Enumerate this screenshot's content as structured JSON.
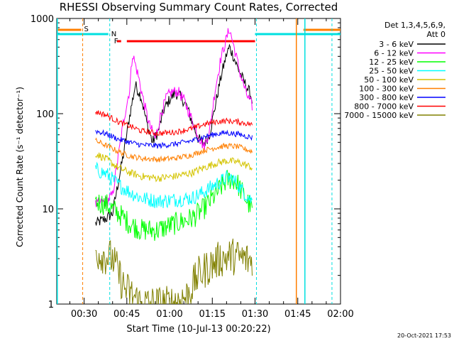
{
  "chart_data": {
    "type": "line",
    "title": "RHESSI Observing Summary Count Rates, Corrected",
    "xlabel": "Start Time (10-Jul-13 00:20:22)",
    "ylabel": "Corrected Count Rate (s⁻¹ detector⁻¹)",
    "y_scale": "log",
    "ylim": [
      1,
      1000
    ],
    "xlim_minutes": [
      20.4,
      120.0
    ],
    "x_ticks": [
      {
        "label": "00:30",
        "minute": 30
      },
      {
        "label": "00:45",
        "minute": 45
      },
      {
        "label": "01:00",
        "minute": 60
      },
      {
        "label": "01:15",
        "minute": 75
      },
      {
        "label": "01:30",
        "minute": 90
      },
      {
        "label": "01:45",
        "minute": 105
      },
      {
        "label": "02:00",
        "minute": 120
      }
    ],
    "y_ticks": [
      {
        "label": "1",
        "value": 1
      },
      {
        "label": "10",
        "value": 10
      },
      {
        "label": "100",
        "value": 100
      },
      {
        "label": "1000",
        "value": 1000
      }
    ],
    "legend": {
      "position": "right",
      "header": [
        "Det 1,3,4,5,6,9,",
        "Att 0"
      ]
    },
    "series": [
      {
        "name": "3 - 6 keV",
        "color": "#000000",
        "points": [
          [
            34,
            7
          ],
          [
            38,
            8
          ],
          [
            40,
            9
          ],
          [
            44,
            40
          ],
          [
            46,
            95
          ],
          [
            48,
            200
          ],
          [
            50,
            150
          ],
          [
            52,
            80
          ],
          [
            54,
            50
          ],
          [
            56,
            65
          ],
          [
            58,
            110
          ],
          [
            60,
            140
          ],
          [
            62,
            165
          ],
          [
            64,
            150
          ],
          [
            66,
            120
          ],
          [
            68,
            80
          ],
          [
            70,
            55
          ],
          [
            72,
            48
          ],
          [
            74,
            60
          ],
          [
            76,
            120
          ],
          [
            78,
            240
          ],
          [
            80,
            420
          ],
          [
            81,
            500
          ],
          [
            82,
            430
          ],
          [
            84,
            300
          ],
          [
            86,
            220
          ],
          [
            88,
            170
          ],
          [
            89,
            140
          ]
        ],
        "noise": 0.06
      },
      {
        "name": "6 - 12 keV",
        "color": "#ff00ff",
        "points": [
          [
            34,
            11
          ],
          [
            38,
            12
          ],
          [
            40,
            14
          ],
          [
            44,
            90
          ],
          [
            46,
            180
          ],
          [
            47,
            430
          ],
          [
            49,
            250
          ],
          [
            51,
            130
          ],
          [
            53,
            75
          ],
          [
            55,
            55
          ],
          [
            57,
            100
          ],
          [
            59,
            150
          ],
          [
            61,
            170
          ],
          [
            63,
            170
          ],
          [
            65,
            140
          ],
          [
            67,
            100
          ],
          [
            70,
            60
          ],
          [
            72,
            45
          ],
          [
            74,
            65
          ],
          [
            76,
            180
          ],
          [
            78,
            380
          ],
          [
            80,
            620
          ],
          [
            81,
            780
          ],
          [
            83,
            450
          ],
          [
            85,
            250
          ],
          [
            87,
            160
          ],
          [
            89,
            120
          ]
        ],
        "noise": 0.06
      },
      {
        "name": "12 - 25 keV",
        "color": "#00ff00",
        "points": [
          [
            34,
            12
          ],
          [
            38,
            11
          ],
          [
            42,
            9
          ],
          [
            46,
            7
          ],
          [
            50,
            6
          ],
          [
            56,
            6
          ],
          [
            62,
            7
          ],
          [
            68,
            8
          ],
          [
            72,
            10
          ],
          [
            76,
            14
          ],
          [
            80,
            20
          ],
          [
            82,
            21
          ],
          [
            84,
            18
          ],
          [
            86,
            14
          ],
          [
            88,
            11
          ],
          [
            89,
            10
          ]
        ],
        "noise": 0.12
      },
      {
        "name": "25 - 50 keV",
        "color": "#00ffff",
        "points": [
          [
            34,
            26
          ],
          [
            38,
            23
          ],
          [
            42,
            18
          ],
          [
            46,
            15
          ],
          [
            50,
            13
          ],
          [
            56,
            12
          ],
          [
            62,
            12.5
          ],
          [
            68,
            13
          ],
          [
            72,
            15
          ],
          [
            76,
            18
          ],
          [
            80,
            21
          ],
          [
            82,
            21
          ],
          [
            84,
            18
          ],
          [
            86,
            15
          ],
          [
            88,
            13
          ],
          [
            89,
            12
          ]
        ],
        "noise": 0.08
      },
      {
        "name": "50 - 100 keV",
        "color": "#d4c400",
        "points": [
          [
            34,
            38
          ],
          [
            38,
            33
          ],
          [
            42,
            27
          ],
          [
            46,
            24
          ],
          [
            50,
            22
          ],
          [
            56,
            21
          ],
          [
            62,
            22
          ],
          [
            68,
            24
          ],
          [
            72,
            27
          ],
          [
            76,
            30
          ],
          [
            80,
            32
          ],
          [
            84,
            31
          ],
          [
            88,
            28
          ],
          [
            89,
            27
          ]
        ],
        "noise": 0.04
      },
      {
        "name": "100 - 300 keV",
        "color": "#ff7f00",
        "points": [
          [
            34,
            52
          ],
          [
            38,
            46
          ],
          [
            42,
            40
          ],
          [
            46,
            36
          ],
          [
            50,
            34
          ],
          [
            56,
            33
          ],
          [
            62,
            34
          ],
          [
            68,
            37
          ],
          [
            72,
            41
          ],
          [
            76,
            44
          ],
          [
            80,
            46
          ],
          [
            84,
            45
          ],
          [
            88,
            41
          ],
          [
            89,
            40
          ]
        ],
        "noise": 0.03
      },
      {
        "name": "300 - 800 keV",
        "color": "#0000ff",
        "points": [
          [
            34,
            66
          ],
          [
            38,
            61
          ],
          [
            42,
            54
          ],
          [
            46,
            50
          ],
          [
            50,
            47
          ],
          [
            56,
            46
          ],
          [
            62,
            48
          ],
          [
            68,
            52
          ],
          [
            72,
            57
          ],
          [
            76,
            61
          ],
          [
            80,
            63
          ],
          [
            84,
            61
          ],
          [
            88,
            57
          ],
          [
            89,
            56
          ]
        ],
        "noise": 0.03
      },
      {
        "name": "800 - 7000 keV",
        "color": "#ff0000",
        "points": [
          [
            34,
            105
          ],
          [
            38,
            96
          ],
          [
            42,
            82
          ],
          [
            46,
            74
          ],
          [
            50,
            66
          ],
          [
            56,
            62
          ],
          [
            62,
            64
          ],
          [
            68,
            70
          ],
          [
            72,
            77
          ],
          [
            76,
            82
          ],
          [
            80,
            84
          ],
          [
            84,
            82
          ],
          [
            88,
            78
          ],
          [
            89,
            76
          ]
        ],
        "noise": 0.03
      },
      {
        "name": "7000 - 15000 keV",
        "color": "#808000",
        "points": [
          [
            34,
            3.5
          ],
          [
            40,
            3
          ],
          [
            44,
            1.5
          ],
          [
            50,
            1
          ],
          [
            60,
            1
          ],
          [
            66,
            1.2
          ],
          [
            70,
            2
          ],
          [
            74,
            2.5
          ],
          [
            78,
            3
          ],
          [
            82,
            3.2
          ],
          [
            86,
            3
          ],
          [
            89,
            2.8
          ]
        ],
        "noise": 0.2
      }
    ],
    "annotations": [
      {
        "label": "S",
        "color": "#ff7f00",
        "minute": 29.5
      },
      {
        "label": "N",
        "color": "#00e0e0",
        "minute": 39
      },
      {
        "label": "F",
        "color": "#ff0000",
        "minute": 40
      }
    ],
    "footer_date": "20-Oct-2021 17:53"
  }
}
